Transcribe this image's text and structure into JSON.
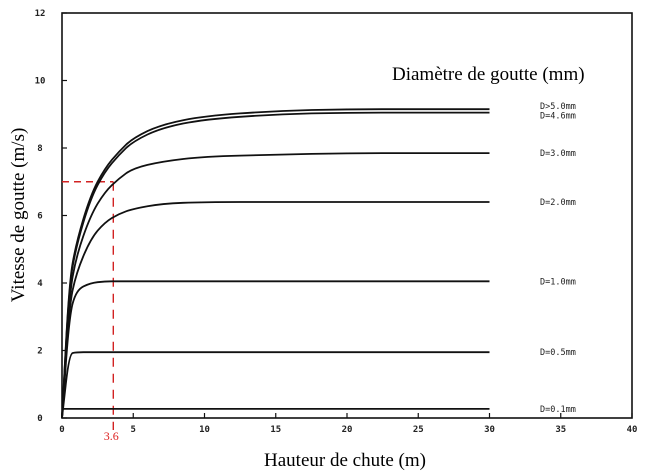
{
  "chart_data": {
    "type": "line",
    "title": "",
    "xlabel": "Hauteur de chute (m)",
    "ylabel": "Vitesse de goutte (m/s)",
    "legend_title": "Diamètre de goutte (mm)",
    "xlim": [
      0,
      40
    ],
    "ylim": [
      0,
      12
    ],
    "x_ticks": [
      0,
      5,
      10,
      15,
      20,
      25,
      30,
      35,
      40
    ],
    "y_ticks": [
      0,
      2,
      4,
      6,
      8,
      10,
      12
    ],
    "x": [
      0,
      0.5,
      1,
      2,
      3,
      4,
      5,
      7,
      10,
      15,
      20,
      25,
      30
    ],
    "series": [
      {
        "name": "D>5.0mm",
        "values": [
          0,
          4.0,
          5.2,
          6.6,
          7.4,
          7.9,
          8.3,
          8.7,
          8.95,
          9.1,
          9.15,
          9.15,
          9.15
        ]
      },
      {
        "name": "D=4.6mm",
        "values": [
          0,
          3.9,
          5.1,
          6.5,
          7.3,
          7.8,
          8.2,
          8.6,
          8.85,
          9.0,
          9.05,
          9.05,
          9.05
        ]
      },
      {
        "name": "D=3.0mm",
        "values": [
          0,
          3.6,
          4.8,
          6.0,
          6.7,
          7.1,
          7.4,
          7.6,
          7.75,
          7.8,
          7.85,
          7.85,
          7.85
        ]
      },
      {
        "name": "D=2.0mm",
        "values": [
          0,
          3.3,
          4.3,
          5.3,
          5.8,
          6.05,
          6.2,
          6.35,
          6.4,
          6.4,
          6.4,
          6.4,
          6.4
        ]
      },
      {
        "name": "D=1.0mm",
        "values": [
          0,
          3.0,
          3.8,
          4.0,
          4.05,
          4.05,
          4.05,
          4.05,
          4.05,
          4.05,
          4.05,
          4.05,
          4.05
        ]
      },
      {
        "name": "D=0.5mm",
        "values": [
          0,
          1.9,
          1.95,
          1.95,
          1.95,
          1.95,
          1.95,
          1.95,
          1.95,
          1.95,
          1.95,
          1.95,
          1.95
        ]
      },
      {
        "name": "D=0.1mm",
        "values": [
          0.27,
          0.27,
          0.27,
          0.27,
          0.27,
          0.27,
          0.27,
          0.27,
          0.27,
          0.27,
          0.27,
          0.27,
          0.27
        ]
      }
    ],
    "annotation": {
      "x": 3.6,
      "y": 7.0,
      "label": "3.6",
      "color": "#d22222"
    },
    "grid": false,
    "legend_placement": "right"
  }
}
